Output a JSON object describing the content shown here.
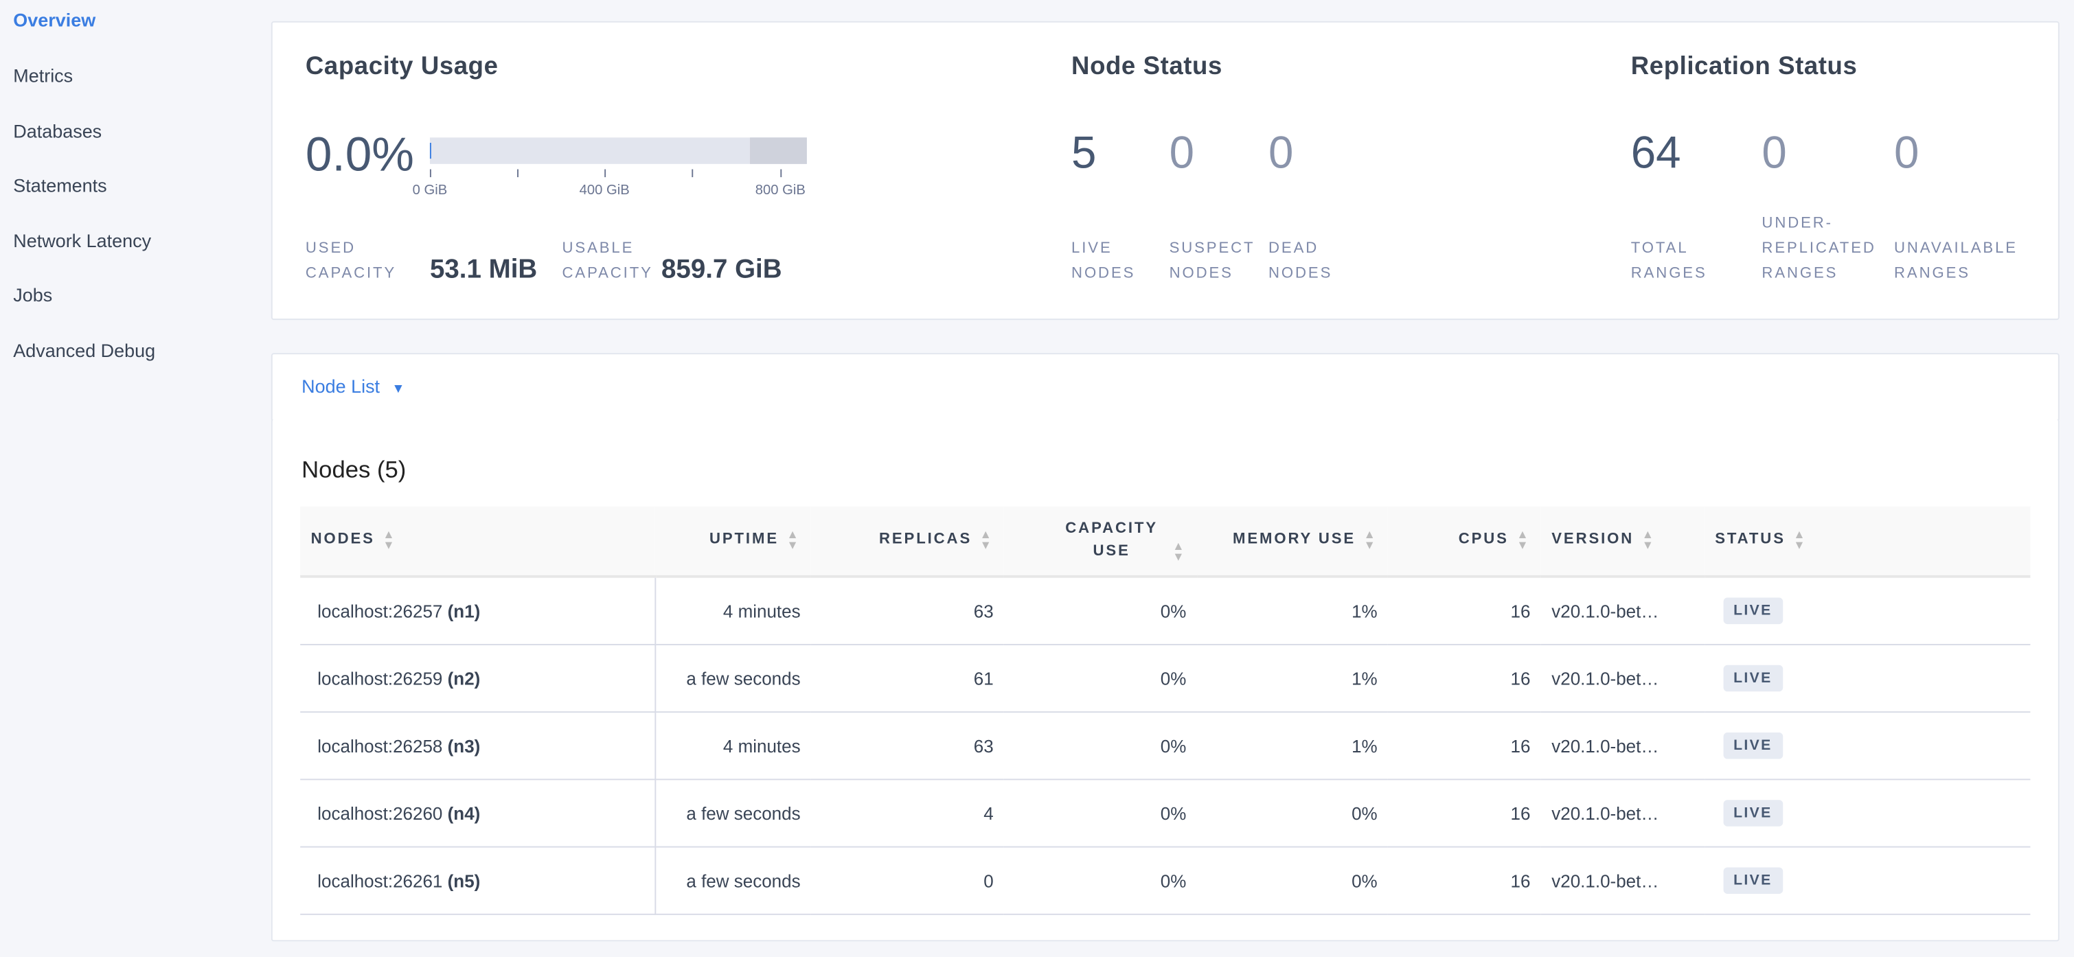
{
  "sidebar": {
    "items": [
      {
        "label": "Overview",
        "active": true
      },
      {
        "label": "Metrics"
      },
      {
        "label": "Databases"
      },
      {
        "label": "Statements"
      },
      {
        "label": "Network Latency"
      },
      {
        "label": "Jobs"
      },
      {
        "label": "Advanced Debug"
      }
    ]
  },
  "capacity": {
    "title": "Capacity Usage",
    "percent": "0.0%",
    "usage_fraction": 0.0,
    "ticks": [
      "0 GiB",
      "400 GiB",
      "800 GiB"
    ],
    "used_label_1": "USED",
    "used_label_2": "CAPACITY",
    "used_value": "53.1 MiB",
    "usable_label_1": "USABLE",
    "usable_label_2": "CAPACITY",
    "usable_value": "859.7 GiB"
  },
  "node_status": {
    "title": "Node Status",
    "live": "5",
    "suspect": "0",
    "dead": "0",
    "live_l1": "LIVE",
    "live_l2": "NODES",
    "suspect_l1": "SUSPECT",
    "suspect_l2": "NODES",
    "dead_l1": "DEAD",
    "dead_l2": "NODES"
  },
  "replication": {
    "title": "Replication Status",
    "total": "64",
    "under": "0",
    "unavailable": "0",
    "total_l1": "TOTAL",
    "total_l2": "RANGES",
    "under_l1": "UNDER-",
    "under_l2": "REPLICATED",
    "under_l3": "RANGES",
    "unav_l1": "UNAVAILABLE",
    "unav_l2": "RANGES"
  },
  "node_list": {
    "dropdown_label": "Node List",
    "heading": "Nodes (5)",
    "columns": [
      "NODES",
      "UPTIME",
      "REPLICAS",
      "CAPACITY USE",
      "MEMORY USE",
      "CPUS",
      "VERSION",
      "STATUS"
    ],
    "rows": [
      {
        "host": "localhost:26257",
        "id": "(n1)",
        "uptime": "4 minutes",
        "replicas": "63",
        "capacity": "0%",
        "memory": "1%",
        "cpus": "16",
        "version": "v20.1.0-bet…",
        "status": "LIVE"
      },
      {
        "host": "localhost:26259",
        "id": "(n2)",
        "uptime": "a few seconds",
        "replicas": "61",
        "capacity": "0%",
        "memory": "1%",
        "cpus": "16",
        "version": "v20.1.0-bet…",
        "status": "LIVE"
      },
      {
        "host": "localhost:26258",
        "id": "(n3)",
        "uptime": "4 minutes",
        "replicas": "63",
        "capacity": "0%",
        "memory": "1%",
        "cpus": "16",
        "version": "v20.1.0-bet…",
        "status": "LIVE"
      },
      {
        "host": "localhost:26260",
        "id": "(n4)",
        "uptime": "a few seconds",
        "replicas": "4",
        "capacity": "0%",
        "memory": "0%",
        "cpus": "16",
        "version": "v20.1.0-bet…",
        "status": "LIVE"
      },
      {
        "host": "localhost:26261",
        "id": "(n5)",
        "uptime": "a few seconds",
        "replicas": "0",
        "capacity": "0%",
        "memory": "0%",
        "cpus": "16",
        "version": "v20.1.0-bet…",
        "status": "LIVE"
      }
    ]
  },
  "colors": {
    "accent": "#3a7de1",
    "text": "#394455"
  }
}
